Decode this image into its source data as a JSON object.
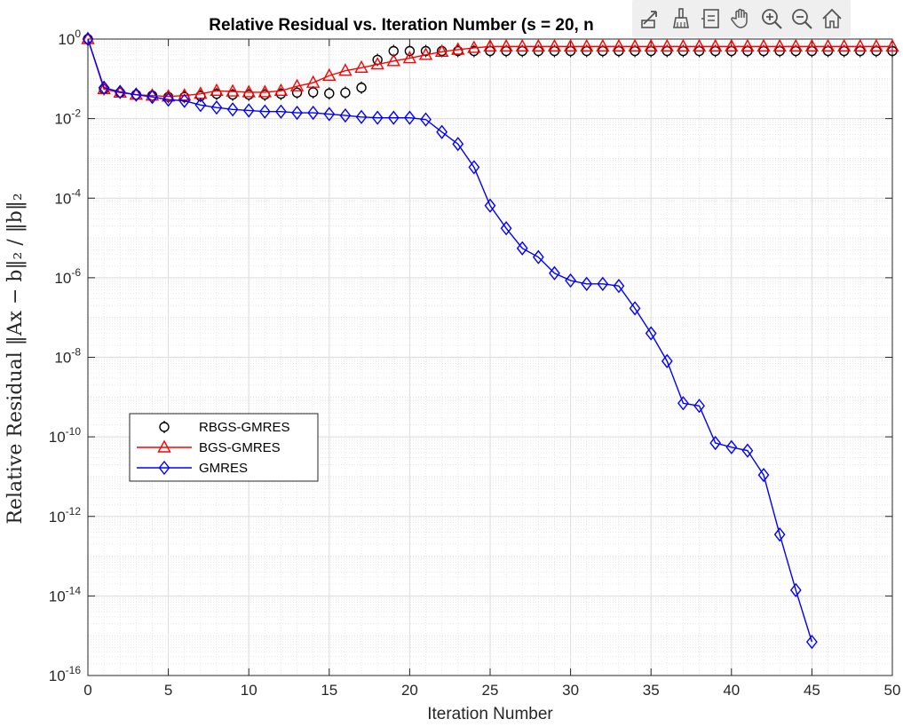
{
  "toolbar": {
    "items": [
      {
        "name": "export-icon"
      },
      {
        "name": "brush-icon"
      },
      {
        "name": "datatip-icon"
      },
      {
        "name": "pan-hand-icon"
      },
      {
        "name": "zoom-in-icon"
      },
      {
        "name": "zoom-out-icon"
      },
      {
        "name": "home-icon"
      }
    ]
  },
  "chart_data": {
    "type": "line",
    "title": "Relative Residual vs. Iteration Number (s = 20, n",
    "xlabel": "Iteration Number",
    "ylabel": "Relative Residual ‖Ax − b‖₂ / ‖b‖₂",
    "xlim": [
      0,
      50
    ],
    "ylim_exponent": [
      -16,
      0
    ],
    "yscale": "log",
    "grid": "on (major and minor)",
    "legend_position": "middle-left",
    "x_ticks": [
      0,
      5,
      10,
      15,
      20,
      25,
      30,
      35,
      40,
      45,
      50
    ],
    "y_tick_exponents": [
      0,
      -2,
      -4,
      -6,
      -8,
      -10,
      -12,
      -14,
      -16
    ],
    "series": [
      {
        "name": "RBGS-GMRES",
        "color": "#000000",
        "marker": "circle",
        "has_line": false,
        "x": [
          0,
          1,
          2,
          3,
          4,
          5,
          6,
          7,
          8,
          9,
          10,
          11,
          12,
          13,
          14,
          15,
          16,
          17,
          18,
          19,
          20,
          21,
          22,
          23,
          24,
          25,
          26,
          27,
          28,
          29,
          30,
          31,
          32,
          33,
          34,
          35,
          36,
          37,
          38,
          39,
          40,
          41,
          42,
          43,
          44,
          45,
          46,
          47,
          48,
          49,
          50
        ],
        "y": [
          1.0,
          0.055,
          0.045,
          0.04,
          0.038,
          0.035,
          0.035,
          0.037,
          0.042,
          0.04,
          0.04,
          0.04,
          0.042,
          0.045,
          0.046,
          0.043,
          0.045,
          0.06,
          0.3,
          0.5,
          0.5,
          0.5,
          0.5,
          0.5,
          0.5,
          0.5,
          0.5,
          0.5,
          0.5,
          0.5,
          0.5,
          0.5,
          0.5,
          0.5,
          0.5,
          0.5,
          0.5,
          0.5,
          0.5,
          0.5,
          0.5,
          0.5,
          0.5,
          0.5,
          0.5,
          0.5,
          0.5,
          0.5,
          0.5,
          0.5,
          0.5
        ]
      },
      {
        "name": "BGS-GMRES",
        "color": "#ff0000",
        "marker": "triangle",
        "has_line": true,
        "x": [
          0,
          1,
          2,
          3,
          4,
          5,
          6,
          7,
          8,
          9,
          10,
          11,
          12,
          13,
          14,
          15,
          16,
          17,
          18,
          19,
          20,
          21,
          22,
          23,
          24,
          25,
          26,
          27,
          28,
          29,
          30,
          31,
          32,
          33,
          34,
          35,
          36,
          37,
          38,
          39,
          40,
          41,
          42,
          43,
          44,
          45,
          46,
          47,
          48,
          49,
          50
        ],
        "y": [
          1.0,
          0.055,
          0.045,
          0.04,
          0.038,
          0.036,
          0.038,
          0.042,
          0.05,
          0.048,
          0.046,
          0.046,
          0.05,
          0.065,
          0.08,
          0.12,
          0.16,
          0.19,
          0.23,
          0.28,
          0.33,
          0.4,
          0.48,
          0.54,
          0.6,
          0.65,
          0.65,
          0.65,
          0.65,
          0.65,
          0.65,
          0.65,
          0.65,
          0.65,
          0.65,
          0.65,
          0.65,
          0.65,
          0.65,
          0.65,
          0.65,
          0.65,
          0.65,
          0.65,
          0.65,
          0.65,
          0.65,
          0.65,
          0.65,
          0.65,
          0.65
        ]
      },
      {
        "name": "GMRES",
        "color": "#0000ff",
        "marker": "diamond",
        "has_line": true,
        "x": [
          0,
          1,
          2,
          3,
          4,
          5,
          6,
          7,
          8,
          9,
          10,
          11,
          12,
          13,
          14,
          15,
          16,
          17,
          18,
          19,
          20,
          21,
          22,
          23,
          24,
          25,
          26,
          27,
          28,
          29,
          30,
          31,
          32,
          33,
          34,
          35,
          36,
          37,
          38,
          39,
          40,
          41,
          42,
          43,
          44,
          45
        ],
        "y": [
          1.0,
          0.06,
          0.047,
          0.04,
          0.035,
          0.03,
          0.028,
          0.022,
          0.019,
          0.017,
          0.016,
          0.015,
          0.015,
          0.014,
          0.014,
          0.013,
          0.012,
          0.011,
          0.0105,
          0.0105,
          0.0105,
          0.0095,
          0.0046,
          0.0023,
          0.0006,
          6.5e-05,
          1.75e-05,
          5.5e-06,
          3.3e-06,
          1.3e-06,
          8.5e-07,
          7e-07,
          7e-07,
          6.2e-07,
          1.7e-07,
          4e-08,
          8e-09,
          7e-10,
          6e-10,
          7e-11,
          5.5e-11,
          4.5e-11,
          1.1e-11,
          3.5e-13,
          1.4e-14,
          7e-16
        ]
      }
    ]
  }
}
